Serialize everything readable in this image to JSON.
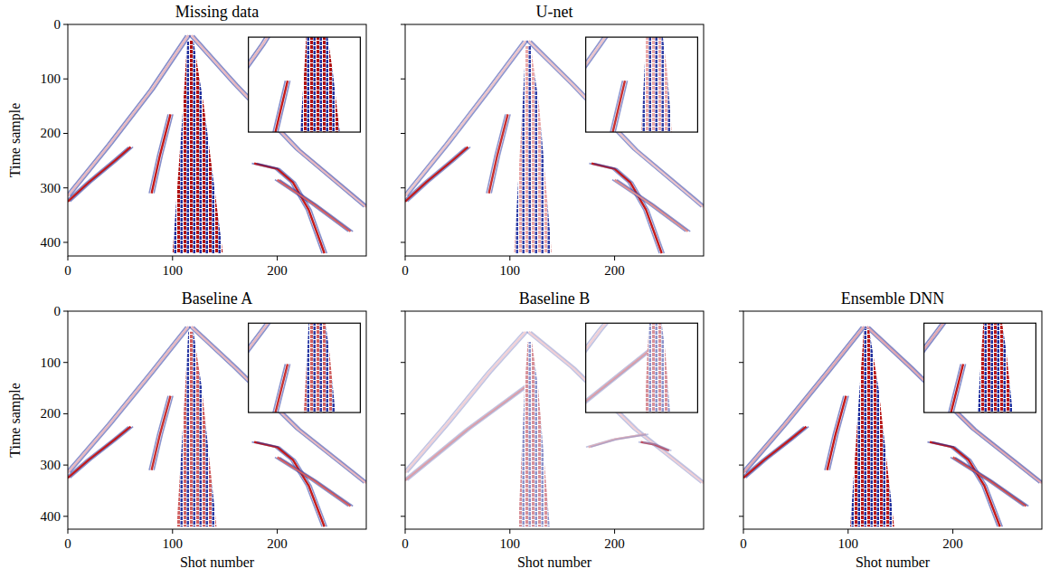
{
  "chart_data": [
    {
      "type": "image",
      "title": "Missing data",
      "y_label": "Time sample",
      "tick_labels": true,
      "xlim": [
        0,
        285
      ],
      "ylim": [
        0,
        425
      ],
      "xticks": [
        0,
        100,
        200
      ],
      "yticks": [
        0,
        100,
        200,
        300,
        400
      ],
      "inset_xlim": [
        70,
        150
      ],
      "inset_ylim": [
        110,
        230
      ],
      "color": "#1f2f9e",
      "series": [
        {
          "type": "line",
          "color": "#e8b8c0",
          "x": [
            115,
            80,
            40,
            0
          ],
          "values": [
            20,
            120,
            220,
            315
          ]
        },
        {
          "type": "line",
          "color": "#e8b8c0",
          "x": [
            118,
            160,
            220,
            285
          ],
          "values": [
            20,
            110,
            230,
            335
          ]
        },
        {
          "type": "line",
          "color": "#c41a1a",
          "x": [
            0,
            20,
            45,
            60
          ],
          "values": [
            325,
            290,
            250,
            225
          ]
        },
        {
          "type": "line",
          "color": "#c41a1a",
          "x": [
            80,
            88,
            98
          ],
          "values": [
            310,
            240,
            165
          ]
        },
        {
          "type": "line",
          "color": "#c41a1a",
          "x": [
            178,
            200,
            215,
            230,
            245
          ],
          "values": [
            255,
            265,
            290,
            340,
            420
          ]
        },
        {
          "type": "line",
          "color": "#d86060",
          "x": [
            200,
            235,
            270
          ],
          "values": [
            285,
            330,
            380
          ]
        },
        {
          "type": "area",
          "color": "#b01010",
          "x": [
            100,
            110,
            114,
            120,
            130,
            148
          ],
          "values": [
            420,
            150,
            30,
            30,
            150,
            420
          ]
        }
      ]
    },
    {
      "type": "image",
      "title": "U-net",
      "tick_labels": "x",
      "xlim": [
        0,
        285
      ],
      "ylim": [
        0,
        425
      ],
      "xticks": [
        0,
        100,
        200
      ],
      "yticks": [
        0,
        100,
        200,
        300,
        400
      ],
      "inset_xlim": [
        70,
        150
      ],
      "inset_ylim": [
        110,
        230
      ],
      "color": "#3040a8",
      "series": [
        {
          "type": "line",
          "color": "#ecc4ca",
          "x": [
            115,
            80,
            40,
            0
          ],
          "values": [
            30,
            120,
            220,
            315
          ]
        },
        {
          "type": "line",
          "color": "#ecc4ca",
          "x": [
            118,
            160,
            220,
            285
          ],
          "values": [
            30,
            110,
            230,
            335
          ]
        },
        {
          "type": "line",
          "color": "#c41a1a",
          "x": [
            0,
            20,
            45,
            60
          ],
          "values": [
            325,
            290,
            250,
            225
          ]
        },
        {
          "type": "line",
          "color": "#c83030",
          "x": [
            80,
            88,
            98
          ],
          "values": [
            310,
            240,
            165
          ]
        },
        {
          "type": "line",
          "color": "#c41a1a",
          "x": [
            178,
            200,
            215,
            230,
            245
          ],
          "values": [
            255,
            265,
            290,
            340,
            420
          ]
        },
        {
          "type": "line",
          "color": "#e09090",
          "x": [
            200,
            235,
            270
          ],
          "values": [
            285,
            330,
            380
          ]
        },
        {
          "type": "area",
          "color": "#eaa8a8",
          "x": [
            104,
            112,
            115,
            120,
            128,
            140
          ],
          "values": [
            420,
            150,
            40,
            40,
            150,
            420
          ]
        }
      ]
    },
    {
      "type": "image",
      "title": "Baseline A",
      "x_label": "Shot number",
      "y_label": "Time sample",
      "tick_labels": true,
      "xlim": [
        0,
        285
      ],
      "ylim": [
        0,
        425
      ],
      "xticks": [
        0,
        100,
        200
      ],
      "yticks": [
        0,
        100,
        200,
        300,
        400
      ],
      "inset_xlim": [
        70,
        150
      ],
      "inset_ylim": [
        110,
        230
      ],
      "color": "#2a3aa4",
      "series": [
        {
          "type": "line",
          "color": "#e8b8c0",
          "x": [
            115,
            80,
            40,
            0
          ],
          "values": [
            30,
            120,
            220,
            315
          ]
        },
        {
          "type": "line",
          "color": "#e8b8c0",
          "x": [
            118,
            160,
            220,
            285
          ],
          "values": [
            30,
            110,
            230,
            335
          ]
        },
        {
          "type": "line",
          "color": "#c41a1a",
          "x": [
            0,
            20,
            45,
            60
          ],
          "values": [
            325,
            290,
            250,
            225
          ]
        },
        {
          "type": "line",
          "color": "#c83030",
          "x": [
            80,
            88,
            98
          ],
          "values": [
            310,
            240,
            165
          ]
        },
        {
          "type": "line",
          "color": "#c41a1a",
          "x": [
            178,
            200,
            215,
            230,
            245
          ],
          "values": [
            255,
            265,
            290,
            340,
            420
          ]
        },
        {
          "type": "line",
          "color": "#d86060",
          "x": [
            200,
            235,
            270
          ],
          "values": [
            285,
            330,
            380
          ]
        },
        {
          "type": "area",
          "color": "#d06060",
          "x": [
            104,
            112,
            115,
            120,
            128,
            142
          ],
          "values": [
            420,
            150,
            40,
            40,
            150,
            420
          ]
        }
      ]
    },
    {
      "type": "image",
      "title": "Baseline B",
      "x_label": "Shot number",
      "tick_labels": "x",
      "xlim": [
        0,
        285
      ],
      "ylim": [
        0,
        425
      ],
      "xticks": [
        0,
        100,
        200
      ],
      "yticks": [
        0,
        100,
        200,
        300,
        400
      ],
      "inset_xlim": [
        70,
        150
      ],
      "inset_ylim": [
        110,
        230
      ],
      "color": "#8c94cc",
      "series": [
        {
          "type": "line",
          "color": "#f0d0d6",
          "x": [
            115,
            80,
            40,
            0
          ],
          "values": [
            40,
            120,
            220,
            315
          ]
        },
        {
          "type": "line",
          "color": "#f0d0d6",
          "x": [
            118,
            160,
            220,
            285
          ],
          "values": [
            40,
            110,
            230,
            335
          ]
        },
        {
          "type": "line",
          "color": "#dca0aa",
          "x": [
            0,
            30,
            60,
            100,
            120
          ],
          "values": [
            330,
            280,
            230,
            170,
            140
          ]
        },
        {
          "type": "line",
          "color": "#c05060",
          "x": [
            225,
            238,
            252
          ],
          "values": [
            255,
            260,
            272
          ]
        },
        {
          "type": "line",
          "color": "#e0b0b8",
          "x": [
            175,
            200,
            230
          ],
          "values": [
            265,
            250,
            240
          ]
        },
        {
          "type": "area",
          "color": "#d89098",
          "x": [
            108,
            114,
            117,
            121,
            127,
            138
          ],
          "values": [
            420,
            150,
            60,
            60,
            150,
            420
          ]
        }
      ]
    },
    {
      "type": "image",
      "title": "Ensemble DNN",
      "x_label": "Shot number",
      "tick_labels": "x",
      "xlim": [
        0,
        285
      ],
      "ylim": [
        0,
        425
      ],
      "xticks": [
        0,
        100,
        200
      ],
      "yticks": [
        0,
        100,
        200,
        300,
        400
      ],
      "inset_xlim": [
        70,
        150
      ],
      "inset_ylim": [
        110,
        230
      ],
      "color": "#1f2f9e",
      "series": [
        {
          "type": "line",
          "color": "#e2a8b2",
          "x": [
            115,
            80,
            40,
            0
          ],
          "values": [
            30,
            120,
            220,
            315
          ]
        },
        {
          "type": "line",
          "color": "#e2a8b2",
          "x": [
            118,
            160,
            220,
            285
          ],
          "values": [
            30,
            110,
            230,
            335
          ]
        },
        {
          "type": "line",
          "color": "#c41a1a",
          "x": [
            0,
            20,
            45,
            60
          ],
          "values": [
            325,
            290,
            250,
            225
          ]
        },
        {
          "type": "line",
          "color": "#c41a1a",
          "x": [
            80,
            88,
            98
          ],
          "values": [
            310,
            240,
            165
          ]
        },
        {
          "type": "line",
          "color": "#c41a1a",
          "x": [
            178,
            200,
            215,
            230,
            245
          ],
          "values": [
            255,
            265,
            290,
            340,
            420
          ]
        },
        {
          "type": "line",
          "color": "#d05050",
          "x": [
            200,
            235,
            270
          ],
          "values": [
            285,
            330,
            380
          ]
        },
        {
          "type": "area",
          "color": "#b81818",
          "x": [
            102,
            111,
            115,
            120,
            129,
            144
          ],
          "values": [
            420,
            150,
            35,
            35,
            150,
            420
          ]
        }
      ]
    }
  ]
}
